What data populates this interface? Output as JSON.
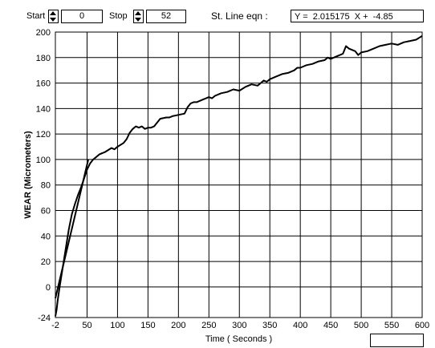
{
  "controls": {
    "start_label": "Start",
    "start_value": "0",
    "stop_label": "Stop",
    "stop_value": "52",
    "eqn_label": "St. Line eqn :",
    "eqn_value": "Y =  2.015175  X +  -4.85",
    "bottom_value": ""
  },
  "chart_data": {
    "type": "line",
    "xlabel": "Time ( Seconds )",
    "ylabel": "WEAR (Micrometers)",
    "xlim": [
      -2,
      600
    ],
    "ylim": [
      -24,
      200
    ],
    "xticks": [
      -2,
      50,
      100,
      150,
      200,
      250,
      300,
      350,
      400,
      450,
      500,
      550,
      600
    ],
    "yticks": [
      -24,
      0,
      20,
      40,
      60,
      80,
      100,
      120,
      140,
      160,
      180,
      200
    ],
    "grid": true,
    "series": [
      {
        "x": [
          -2,
          0,
          2,
          5,
          10,
          15,
          20,
          25,
          30,
          35,
          40,
          45,
          50,
          55,
          60,
          65,
          70,
          80,
          90,
          95,
          100,
          110,
          115,
          120,
          125,
          130,
          135,
          140,
          145,
          150,
          155,
          160,
          170,
          180,
          185,
          190,
          200,
          210,
          215,
          220,
          225,
          230,
          240,
          250,
          255,
          260,
          270,
          280,
          290,
          300,
          310,
          320,
          330,
          340,
          345,
          350,
          360,
          370,
          380,
          390,
          395,
          400,
          410,
          420,
          430,
          440,
          445,
          450,
          460,
          470,
          475,
          480,
          490,
          495,
          500,
          510,
          520,
          530,
          540,
          550,
          560,
          570,
          580,
          590,
          600
        ],
        "y": [
          -23,
          -18,
          -10,
          0,
          15,
          30,
          45,
          57,
          65,
          72,
          78,
          85,
          92,
          97,
          100,
          102,
          104,
          106,
          109,
          108,
          110,
          113,
          116,
          121,
          124,
          126,
          125,
          126,
          124,
          125,
          125,
          126,
          132,
          133,
          133,
          134,
          135,
          136,
          141,
          144,
          145,
          145,
          147,
          149,
          148,
          150,
          152,
          153,
          155,
          154,
          157,
          159,
          158,
          162,
          161,
          163,
          165,
          167,
          168,
          170,
          172,
          172,
          174,
          175,
          177,
          178,
          180,
          179,
          181,
          183,
          189,
          187,
          185,
          182,
          184,
          185,
          187,
          189,
          190,
          191,
          190,
          192,
          193,
          194,
          197
        ]
      },
      {
        "x": [
          -2,
          52
        ],
        "y": [
          -8.88,
          99.94
        ]
      }
    ]
  }
}
